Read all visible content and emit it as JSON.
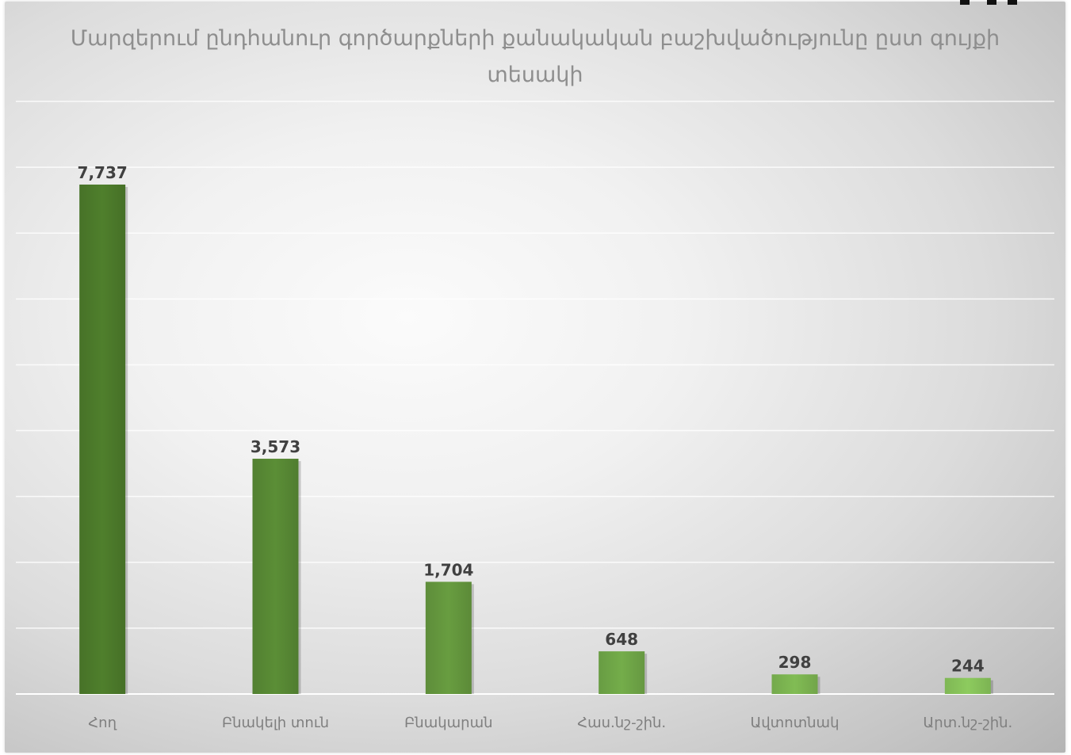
{
  "chart_data": {
    "type": "bar",
    "title": "Մարզերում ընդհանուր գործարքների քանակական բաշխվածությունը ըստ գույքի տեսակի",
    "categories": [
      "Հող",
      "Բնակելի տուն",
      "Բնակարան",
      "Հաս.նշ-շին.",
      "Ավտոտնակ",
      "Արտ.նշ-շին."
    ],
    "values": [
      7737,
      3573,
      1704,
      648,
      298,
      244
    ],
    "value_labels": [
      "7,737",
      "3,573",
      "1,704",
      "648",
      "298",
      "244"
    ],
    "xlabel": "",
    "ylabel": "",
    "ylim": [
      0,
      9000
    ],
    "grid": true,
    "legend": "none",
    "colors": {
      "bar_dark": "#4f7f2c",
      "bar_light": "#8dcb5e",
      "gridline": "#ffffff"
    }
  }
}
